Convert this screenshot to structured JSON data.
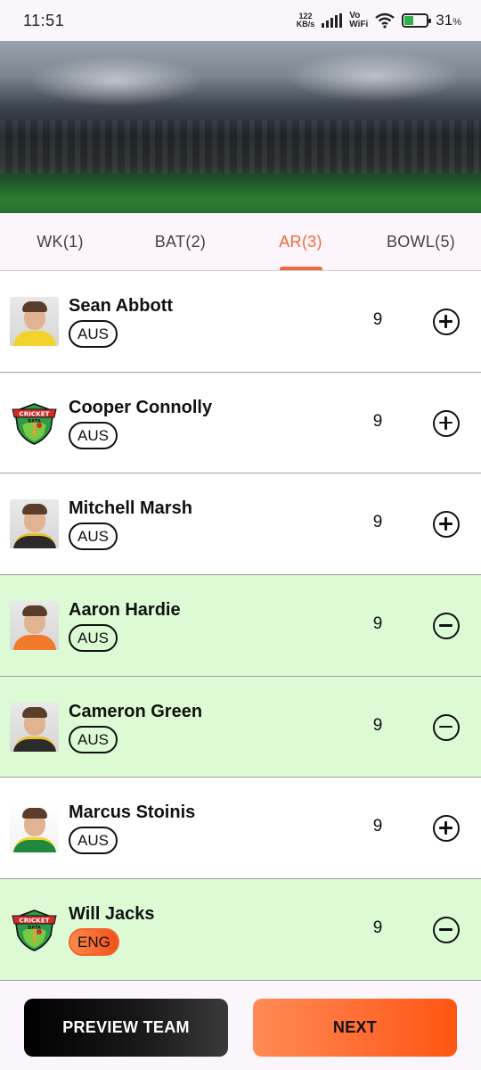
{
  "status_bar": {
    "time": "11:51",
    "net_speed_value": "122",
    "net_speed_unit": "KB/s",
    "vo": "Vo",
    "wifi_label": "WiFi",
    "battery_percent": "31",
    "battery_unit": "%"
  },
  "tabs": [
    {
      "label": "WK(1)",
      "active": false
    },
    {
      "label": "BAT(2)",
      "active": false
    },
    {
      "label": "AR(3)",
      "active": true
    },
    {
      "label": "BOWL(5)",
      "active": false
    }
  ],
  "players": [
    {
      "name": "Sean Abbott",
      "team": "AUS",
      "credits": "9",
      "selected": false,
      "avatar": "photo"
    },
    {
      "name": "Cooper Connolly",
      "team": "AUS",
      "credits": "9",
      "selected": false,
      "avatar": "cricket-data-logo"
    },
    {
      "name": "Mitchell Marsh",
      "team": "AUS",
      "credits": "9",
      "selected": false,
      "avatar": "photo"
    },
    {
      "name": "Aaron Hardie",
      "team": "AUS",
      "credits": "9",
      "selected": true,
      "avatar": "photo"
    },
    {
      "name": "Cameron Green",
      "team": "AUS",
      "credits": "9",
      "selected": true,
      "avatar": "photo"
    },
    {
      "name": "Marcus Stoinis",
      "team": "AUS",
      "credits": "9",
      "selected": false,
      "avatar": "photo"
    },
    {
      "name": "Will Jacks",
      "team": "ENG",
      "credits": "9",
      "selected": true,
      "avatar": "cricket-data-logo"
    }
  ],
  "logo_text": {
    "top": "CRICKET",
    "bottom": "DATA"
  },
  "icons": {
    "add": "plus-circle-icon",
    "remove": "minus-circle-icon"
  },
  "buttons": {
    "preview": "PREVIEW TEAM",
    "next": "NEXT"
  },
  "colors": {
    "accent": "#ee6a3a",
    "selected_row": "#dcfbd5",
    "eng_badge": "#f2622a"
  }
}
